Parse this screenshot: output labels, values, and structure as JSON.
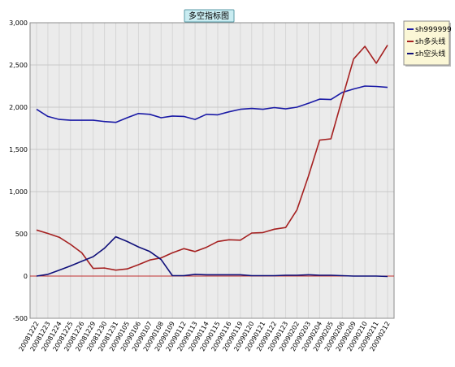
{
  "chart_data": {
    "type": "line",
    "title": "多空指标图",
    "xlabel": "",
    "ylabel": "",
    "ylim": [
      -500,
      3000
    ],
    "yticks": [
      -500,
      0,
      500,
      1000,
      1500,
      2000,
      2500,
      3000
    ],
    "ytick_labels": [
      "-500",
      "0",
      "500",
      "1,000",
      "1,500",
      "2,000",
      "2,500",
      "3,000"
    ],
    "grid": true,
    "legend_position": "top-right",
    "categories": [
      "20081222",
      "20081223",
      "20081224",
      "20081225",
      "20081226",
      "20081229",
      "20081230",
      "20081231",
      "20090105",
      "20090106",
      "20090107",
      "20090108",
      "20090109",
      "20090112",
      "20090113",
      "20090114",
      "20090115",
      "20090116",
      "20090119",
      "20090120",
      "20090121",
      "20090122",
      "20090123",
      "20090202",
      "20090203",
      "20090204",
      "20090205",
      "20090206",
      "20090209",
      "20090210",
      "20090211",
      "20090212"
    ],
    "series": [
      {
        "name": "sh999999",
        "color": "#1a1aa6",
        "values": [
          1975,
          1890,
          1855,
          1845,
          1845,
          1845,
          1830,
          1820,
          1875,
          1925,
          1915,
          1875,
          1895,
          1890,
          1855,
          1915,
          1910,
          1945,
          1975,
          1985,
          1975,
          1995,
          1980,
          2000,
          2045,
          2095,
          2090,
          2175,
          2215,
          2250,
          2245,
          2235
        ]
      },
      {
        "name": "sh多头线",
        "color": "#a52020",
        "values": [
          545,
          505,
          460,
          375,
          275,
          90,
          95,
          70,
          85,
          135,
          190,
          215,
          275,
          325,
          290,
          340,
          410,
          430,
          425,
          510,
          515,
          555,
          575,
          785,
          1180,
          1610,
          1625,
          2105,
          2570,
          2720,
          2520,
          2735
        ]
      },
      {
        "name": "sh空头线",
        "color": "#10107a",
        "values": [
          0,
          20,
          70,
          120,
          175,
          230,
          330,
          465,
          410,
          345,
          290,
          195,
          5,
          5,
          20,
          15,
          15,
          15,
          15,
          5,
          5,
          5,
          10,
          10,
          15,
          10,
          10,
          5,
          0,
          0,
          0,
          -5
        ]
      }
    ],
    "zero_line_color": "#c03030"
  }
}
